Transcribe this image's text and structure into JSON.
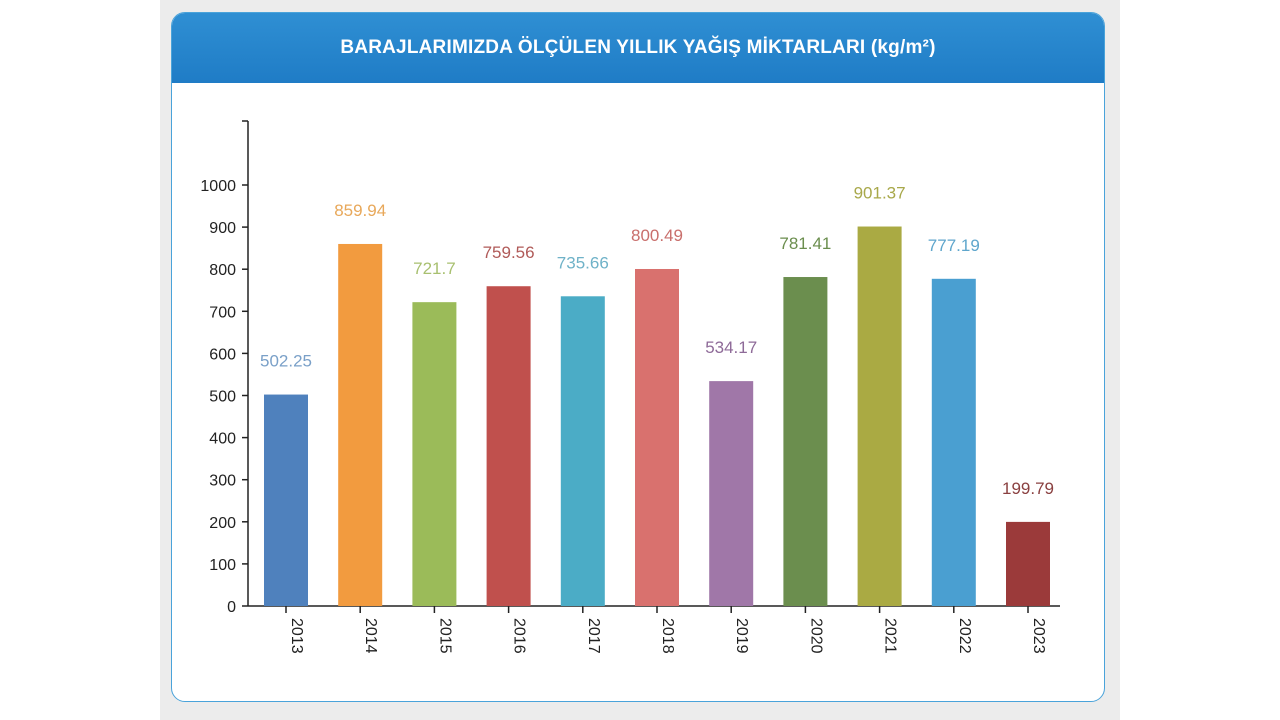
{
  "header": {
    "title": "BARAJLARIMIZDA ÖLÇÜLEN YILLIK YAĞIŞ MİKTARLARI (kg/m²)"
  },
  "chart_data": {
    "type": "bar",
    "title": "BARAJLARIMIZDA ÖLÇÜLEN YILLIK YAĞIŞ MİKTARLARI (kg/m²)",
    "xlabel": "",
    "ylabel": "",
    "ylim": [
      0,
      1000
    ],
    "yticks": [
      "0",
      "100",
      "200",
      "300",
      "400",
      "500",
      "600",
      "700",
      "800",
      "900",
      "1000"
    ],
    "grid": false,
    "categories": [
      "2013",
      "2014",
      "2015",
      "2016",
      "2017",
      "2018",
      "2019",
      "2020",
      "2021",
      "2022",
      "2023"
    ],
    "values": [
      502.25,
      859.94,
      721.7,
      759.56,
      735.66,
      800.49,
      534.17,
      781.41,
      901.37,
      777.19,
      199.79
    ],
    "value_labels": [
      "502.25",
      "859.94",
      "721.7",
      "759.56",
      "735.66",
      "800.49",
      "534.17",
      "781.41",
      "901.37",
      "777.19",
      "199.79"
    ],
    "colors": [
      "#4f81bd",
      "#f29b3f",
      "#9bbb59",
      "#c0504d",
      "#4bacc6",
      "#d9716e",
      "#a077a8",
      "#6b8e4e",
      "#aaaa43",
      "#4a9fd1",
      "#9b3a3a"
    ],
    "label_colors": [
      "#7aa0c8",
      "#e8a85a",
      "#a8c070",
      "#b05a58",
      "#6fb2c8",
      "#c96f6c",
      "#8e6a98",
      "#6b8e4e",
      "#a8a84a",
      "#5fa6cc",
      "#8a4040"
    ]
  }
}
